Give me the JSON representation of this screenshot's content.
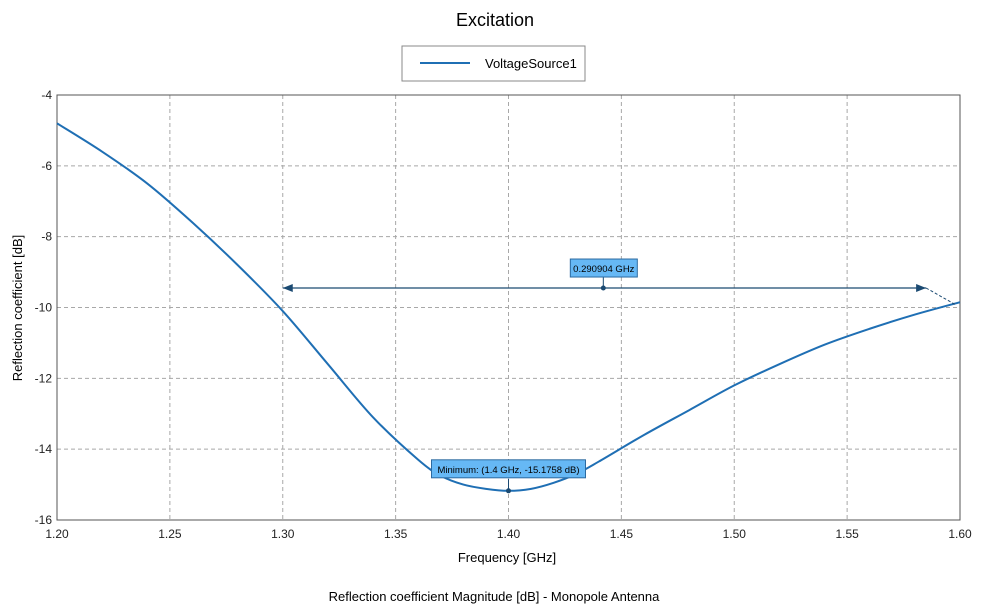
{
  "chart_data": {
    "type": "line",
    "title": "Excitation",
    "xlabel": "Frequency [GHz]",
    "ylabel": "Reflection coefficient [dB]",
    "caption": "Reflection coefficient Magnitude [dB] - Monopole Antenna",
    "xlim": [
      1.2,
      1.6
    ],
    "ylim": [
      -16,
      -4
    ],
    "xticks": [
      "1.20",
      "1.25",
      "1.30",
      "1.35",
      "1.40",
      "1.45",
      "1.50",
      "1.55",
      "1.60"
    ],
    "yticks": [
      "-4",
      "-6",
      "-8",
      "-10",
      "-12",
      "-14",
      "-16"
    ],
    "grid": true,
    "legend_position": "top-center",
    "series": [
      {
        "name": "VoltageSource1",
        "color": "#1f6fb4",
        "x": [
          1.2,
          1.22,
          1.24,
          1.26,
          1.28,
          1.3,
          1.32,
          1.34,
          1.36,
          1.37,
          1.38,
          1.39,
          1.4,
          1.41,
          1.42,
          1.43,
          1.44,
          1.46,
          1.48,
          1.5,
          1.52,
          1.54,
          1.56,
          1.58,
          1.6
        ],
        "y": [
          -4.8,
          -5.6,
          -6.5,
          -7.6,
          -8.8,
          -10.1,
          -11.6,
          -13.1,
          -14.3,
          -14.75,
          -15.0,
          -15.12,
          -15.1758,
          -15.12,
          -14.95,
          -14.7,
          -14.35,
          -13.6,
          -12.9,
          -12.2,
          -11.6,
          -11.05,
          -10.6,
          -10.2,
          -9.85
        ]
      }
    ],
    "annotations": {
      "bandwidth": {
        "label": "0.290904 GHz",
        "x_start": 1.3,
        "x_end": 1.585,
        "y": -9.45,
        "label_x": 1.442
      },
      "minimum": {
        "label": "Minimum: (1.4 GHz, -15.1758 dB)",
        "x": 1.4,
        "y": -15.1758
      }
    }
  }
}
